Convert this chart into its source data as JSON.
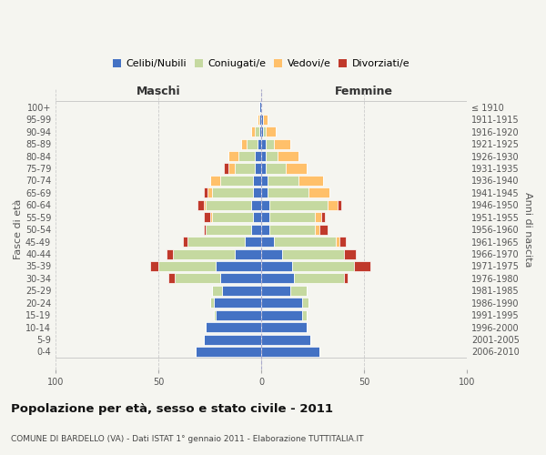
{
  "age_groups": [
    "0-4",
    "5-9",
    "10-14",
    "15-19",
    "20-24",
    "25-29",
    "30-34",
    "35-39",
    "40-44",
    "45-49",
    "50-54",
    "55-59",
    "60-64",
    "65-69",
    "70-74",
    "75-79",
    "80-84",
    "85-89",
    "90-94",
    "95-99",
    "100+"
  ],
  "birth_years": [
    "2006-2010",
    "2001-2005",
    "1996-2000",
    "1991-1995",
    "1986-1990",
    "1981-1985",
    "1976-1980",
    "1971-1975",
    "1966-1970",
    "1961-1965",
    "1956-1960",
    "1951-1955",
    "1946-1950",
    "1941-1945",
    "1936-1940",
    "1931-1935",
    "1926-1930",
    "1921-1925",
    "1916-1920",
    "1911-1915",
    "≤ 1910"
  ],
  "male": {
    "celibi": [
      32,
      28,
      27,
      22,
      23,
      19,
      20,
      22,
      13,
      8,
      5,
      4,
      5,
      4,
      4,
      3,
      3,
      2,
      1,
      1,
      1
    ],
    "coniugati": [
      0,
      0,
      0,
      1,
      2,
      5,
      22,
      28,
      30,
      28,
      22,
      20,
      22,
      20,
      16,
      10,
      8,
      5,
      2,
      0,
      0
    ],
    "vedovi": [
      0,
      0,
      0,
      0,
      0,
      0,
      0,
      0,
      0,
      0,
      0,
      1,
      1,
      2,
      5,
      3,
      5,
      3,
      2,
      1,
      0
    ],
    "divorziati": [
      0,
      0,
      0,
      0,
      0,
      0,
      3,
      4,
      3,
      2,
      1,
      3,
      3,
      2,
      0,
      2,
      0,
      0,
      0,
      0,
      0
    ]
  },
  "female": {
    "nubili": [
      28,
      24,
      22,
      20,
      20,
      14,
      16,
      15,
      10,
      6,
      4,
      4,
      4,
      3,
      3,
      2,
      2,
      2,
      1,
      1,
      0
    ],
    "coniugate": [
      0,
      0,
      0,
      2,
      3,
      8,
      24,
      30,
      30,
      30,
      22,
      22,
      28,
      20,
      15,
      10,
      6,
      4,
      1,
      0,
      0
    ],
    "vedove": [
      0,
      0,
      0,
      0,
      0,
      0,
      0,
      0,
      0,
      2,
      2,
      3,
      5,
      10,
      12,
      10,
      10,
      8,
      5,
      2,
      0
    ],
    "divorziate": [
      0,
      0,
      0,
      0,
      0,
      0,
      2,
      8,
      6,
      3,
      4,
      2,
      2,
      0,
      0,
      0,
      0,
      0,
      0,
      0,
      0
    ]
  },
  "colors": {
    "celibi": "#4472C4",
    "coniugati": "#c5d9a0",
    "vedovi": "#ffc06a",
    "divorziati": "#c0392b"
  },
  "bg_color": "#f5f5f0",
  "xlim": 100,
  "title": "Popolazione per età, sesso e stato civile - 2011",
  "subtitle": "COMUNE DI BARDELLO (VA) - Dati ISTAT 1° gennaio 2011 - Elaborazione TUTTITALIA.IT",
  "ylabel_left": "Fasce di età",
  "ylabel_right": "Anni di nascita",
  "xlabel_left": "Maschi",
  "xlabel_right": "Femmine"
}
